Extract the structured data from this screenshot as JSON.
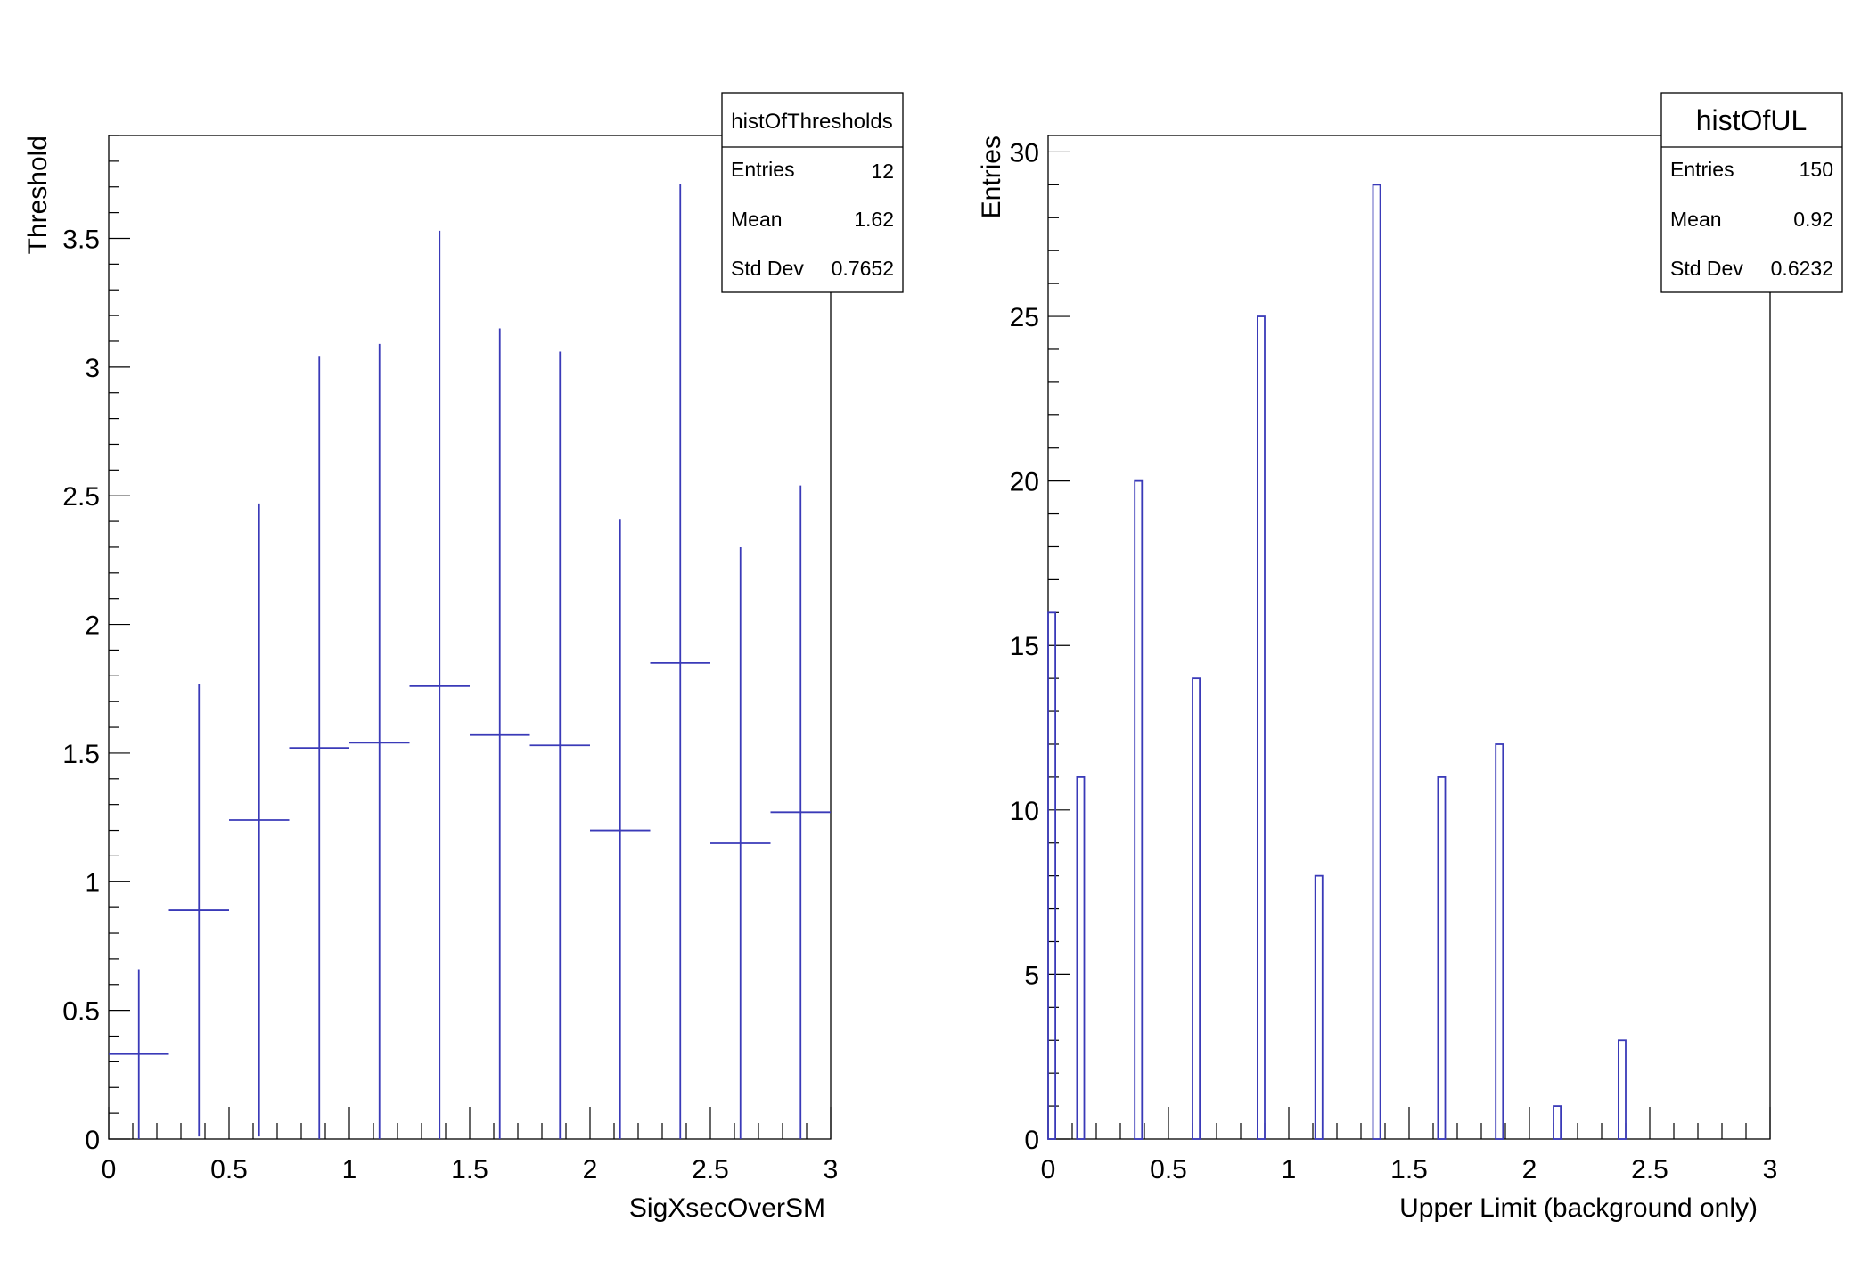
{
  "colors": {
    "series": "#3a3ab8",
    "axis": "#000000",
    "background": "#ffffff"
  },
  "chart_data": [
    {
      "type": "errorbar",
      "stats_box": {
        "title": "histOfThresholds",
        "rows": [
          {
            "label": "Entries",
            "value": "12"
          },
          {
            "label": "Mean",
            "value": "1.62"
          },
          {
            "label": "Std Dev",
            "value": "0.7652"
          }
        ]
      },
      "xlabel": "SigXsecOverSM",
      "ylabel": "Threshold",
      "xlim": [
        0,
        3
      ],
      "ylim": [
        0,
        3.9
      ],
      "xticks": [
        0,
        0.5,
        1,
        1.5,
        2,
        2.5,
        3
      ],
      "xtick_labels": [
        "0",
        "0.5",
        "1",
        "1.5",
        "2",
        "2.5",
        "3"
      ],
      "yticks": [
        0,
        0.5,
        1,
        1.5,
        2,
        2.5,
        3,
        3.5
      ],
      "ytick_labels": [
        "0",
        "0.5",
        "1",
        "1.5",
        "2",
        "2.5",
        "3",
        "3.5"
      ],
      "bin_width": 0.25,
      "points": [
        {
          "x": 0.125,
          "y": 0.33,
          "err": 0.33
        },
        {
          "x": 0.375,
          "y": 0.89,
          "err": 0.88
        },
        {
          "x": 0.625,
          "y": 1.24,
          "err": 1.23
        },
        {
          "x": 0.875,
          "y": 1.52,
          "err": 1.52
        },
        {
          "x": 1.125,
          "y": 1.54,
          "err": 1.55
        },
        {
          "x": 1.375,
          "y": 1.76,
          "err": 1.77
        },
        {
          "x": 1.625,
          "y": 1.57,
          "err": 1.58
        },
        {
          "x": 1.875,
          "y": 1.53,
          "err": 1.53
        },
        {
          "x": 2.125,
          "y": 1.2,
          "err": 1.21
        },
        {
          "x": 2.375,
          "y": 1.85,
          "err": 1.86
        },
        {
          "x": 2.625,
          "y": 1.15,
          "err": 1.15
        },
        {
          "x": 2.875,
          "y": 1.27,
          "err": 1.27
        }
      ]
    },
    {
      "type": "histogram",
      "stats_box": {
        "title": "histOfUL",
        "rows": [
          {
            "label": "Entries",
            "value": "150"
          },
          {
            "label": "Mean",
            "value": "0.92"
          },
          {
            "label": "Std Dev",
            "value": "0.6232"
          }
        ]
      },
      "xlabel": "Upper Limit (background only)",
      "ylabel": "Entries",
      "xlim": [
        0,
        3
      ],
      "ylim": [
        0,
        30.5
      ],
      "xticks": [
        0,
        0.5,
        1,
        1.5,
        2,
        2.5,
        3
      ],
      "xtick_labels": [
        "0",
        "0.5",
        "1",
        "1.5",
        "2",
        "2.5",
        "3"
      ],
      "yticks": [
        0,
        5,
        10,
        15,
        20,
        25,
        30
      ],
      "ytick_labels": [
        "0",
        "5",
        "10",
        "15",
        "20",
        "25",
        "30"
      ],
      "bin_width": 0.03,
      "bins": [
        {
          "x": 0.0,
          "count": 16
        },
        {
          "x": 0.12,
          "count": 11
        },
        {
          "x": 0.36,
          "count": 20
        },
        {
          "x": 0.6,
          "count": 14
        },
        {
          "x": 0.87,
          "count": 25
        },
        {
          "x": 1.11,
          "count": 8
        },
        {
          "x": 1.35,
          "count": 29
        },
        {
          "x": 1.62,
          "count": 11
        },
        {
          "x": 1.86,
          "count": 12
        },
        {
          "x": 2.1,
          "count": 1
        },
        {
          "x": 2.37,
          "count": 3
        }
      ]
    }
  ]
}
